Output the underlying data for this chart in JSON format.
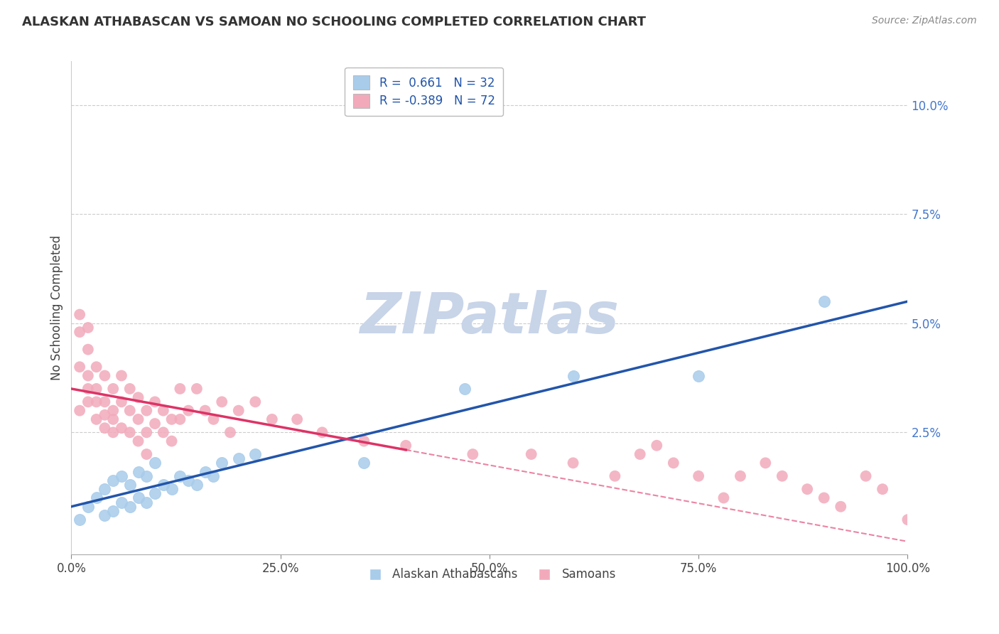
{
  "title": "ALASKAN ATHABASCAN VS SAMOAN NO SCHOOLING COMPLETED CORRELATION CHART",
  "source": "Source: ZipAtlas.com",
  "ylabel": "No Schooling Completed",
  "xlim": [
    0.0,
    100.0
  ],
  "ylim": [
    -0.3,
    11.0
  ],
  "legend_blue_r": "0.661",
  "legend_blue_n": "32",
  "legend_pink_r": "-0.389",
  "legend_pink_n": "72",
  "blue_color": "#A8CCEA",
  "pink_color": "#F2AABB",
  "blue_line_color": "#2255AA",
  "pink_line_color": "#DD3366",
  "watermark": "ZIPatlas",
  "watermark_color": "#C8D4E8",
  "ytick_color": "#4477CC",
  "blue_points_x": [
    1,
    2,
    3,
    4,
    4,
    5,
    5,
    6,
    6,
    7,
    7,
    8,
    8,
    9,
    9,
    10,
    10,
    11,
    12,
    13,
    14,
    15,
    16,
    17,
    18,
    20,
    22,
    35,
    47,
    60,
    75,
    90
  ],
  "blue_points_y": [
    0.5,
    0.8,
    1.0,
    0.6,
    1.2,
    0.7,
    1.4,
    0.9,
    1.5,
    0.8,
    1.3,
    1.0,
    1.6,
    0.9,
    1.5,
    1.1,
    1.8,
    1.3,
    1.2,
    1.5,
    1.4,
    1.3,
    1.6,
    1.5,
    1.8,
    1.9,
    2.0,
    1.8,
    3.5,
    3.8,
    3.8,
    5.5
  ],
  "pink_points_x": [
    1,
    1,
    1,
    1,
    2,
    2,
    2,
    2,
    2,
    3,
    3,
    3,
    3,
    4,
    4,
    4,
    4,
    5,
    5,
    5,
    5,
    6,
    6,
    6,
    7,
    7,
    7,
    8,
    8,
    8,
    9,
    9,
    9,
    10,
    10,
    11,
    11,
    12,
    12,
    13,
    13,
    14,
    15,
    16,
    17,
    18,
    19,
    20,
    22,
    24,
    27,
    30,
    35,
    40,
    48,
    55,
    60,
    65,
    68,
    70,
    72,
    75,
    78,
    80,
    83,
    85,
    88,
    90,
    92,
    95,
    97,
    100
  ],
  "pink_points_y": [
    3.0,
    4.0,
    4.8,
    5.2,
    3.2,
    3.8,
    4.4,
    4.9,
    3.5,
    2.8,
    3.5,
    4.0,
    3.2,
    2.6,
    3.2,
    3.8,
    2.9,
    2.5,
    3.0,
    3.5,
    2.8,
    3.8,
    3.2,
    2.6,
    3.5,
    3.0,
    2.5,
    3.3,
    2.8,
    2.3,
    3.0,
    2.5,
    2.0,
    3.2,
    2.7,
    3.0,
    2.5,
    2.8,
    2.3,
    3.5,
    2.8,
    3.0,
    3.5,
    3.0,
    2.8,
    3.2,
    2.5,
    3.0,
    3.2,
    2.8,
    2.8,
    2.5,
    2.3,
    2.2,
    2.0,
    2.0,
    1.8,
    1.5,
    2.0,
    2.2,
    1.8,
    1.5,
    1.0,
    1.5,
    1.8,
    1.5,
    1.2,
    1.0,
    0.8,
    1.5,
    1.2,
    0.5
  ],
  "blue_line_x0": 0,
  "blue_line_y0": 0.8,
  "blue_line_x1": 100,
  "blue_line_y1": 5.5,
  "pink_line_x0": 0,
  "pink_line_y0": 3.5,
  "pink_line_x1": 100,
  "pink_line_y1": 0.0,
  "pink_solid_end": 40,
  "pink_dashed_start": 40
}
